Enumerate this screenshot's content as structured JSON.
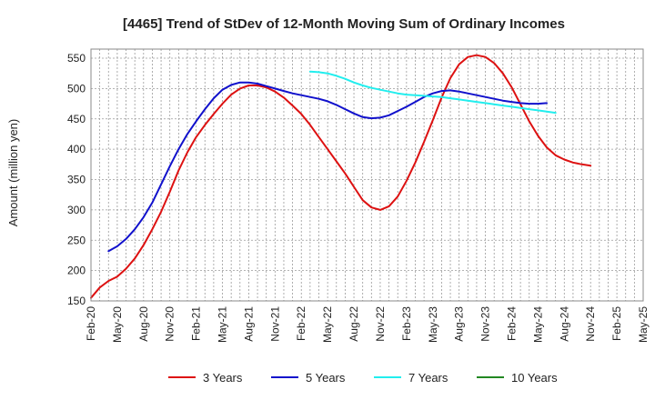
{
  "chart_data": {
    "type": "line",
    "title": "[4465]  Trend of StDev of 12-Month Moving Sum of Ordinary Incomes",
    "xlabel": "",
    "ylabel": "Amount (million yen)",
    "ylim": [
      150,
      565
    ],
    "yticks": [
      150,
      200,
      250,
      300,
      350,
      400,
      450,
      500,
      550
    ],
    "xticks": [
      "Feb-20",
      "May-20",
      "Aug-20",
      "Nov-20",
      "Feb-21",
      "May-21",
      "Aug-21",
      "Nov-21",
      "Feb-22",
      "May-22",
      "Aug-22",
      "Nov-22",
      "Feb-23",
      "May-23",
      "Aug-23",
      "Nov-23",
      "Feb-24",
      "May-24",
      "Aug-24",
      "Nov-24",
      "Feb-25",
      "May-25"
    ],
    "grid": true,
    "legend_position": "bottom",
    "series": [
      {
        "name": "3 Years",
        "color": "#dd1111",
        "start_index": 0,
        "values": [
          155,
          172,
          183,
          190,
          203,
          220,
          242,
          268,
          297,
          330,
          365,
          395,
          420,
          440,
          458,
          475,
          490,
          500,
          505,
          505,
          502,
          495,
          485,
          472,
          458,
          440,
          420,
          400,
          380,
          360,
          338,
          316,
          304,
          300,
          306,
          322,
          348,
          378,
          412,
          448,
          485,
          517,
          540,
          552,
          555,
          552,
          542,
          525,
          502,
          474,
          446,
          422,
          403,
          390,
          383,
          378,
          375,
          373
        ]
      },
      {
        "name": "5 Years",
        "color": "#1111cc",
        "start_index": 2,
        "values": [
          232,
          240,
          252,
          268,
          288,
          312,
          342,
          372,
          400,
          425,
          446,
          466,
          484,
          498,
          506,
          510,
          510,
          508,
          504,
          500,
          496,
          492,
          489,
          486,
          483,
          479,
          473,
          466,
          459,
          453,
          451,
          452,
          456,
          463,
          470,
          478,
          486,
          492,
          496,
          497,
          495,
          492,
          489,
          486,
          483,
          480,
          478,
          476,
          475,
          475,
          476
        ]
      },
      {
        "name": "7 Years",
        "color": "#22eeee",
        "start_index": 25,
        "values": [
          528,
          527,
          525,
          521,
          516,
          510,
          505,
          501,
          498,
          495,
          492,
          490,
          489,
          488,
          487,
          486,
          484,
          482,
          480,
          478,
          476,
          474,
          472,
          470,
          468,
          466,
          464,
          462,
          460
        ]
      },
      {
        "name": "10 Years",
        "color": "#228822",
        "start_index": 0,
        "values": []
      }
    ]
  }
}
